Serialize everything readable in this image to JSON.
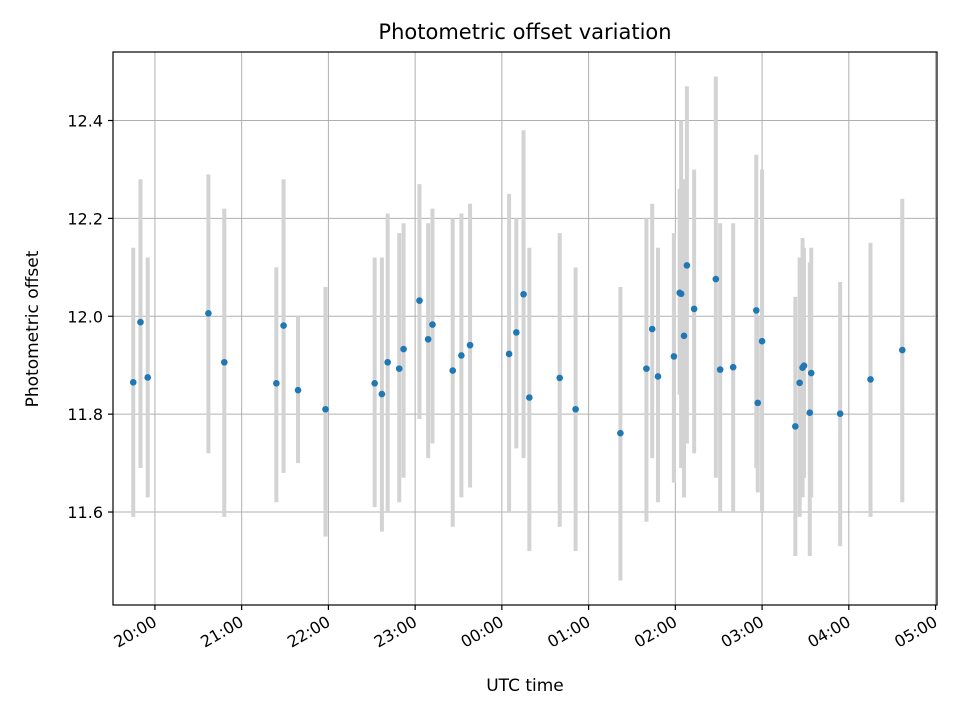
{
  "chart_data": {
    "type": "scatter",
    "title": "Photometric offset variation",
    "xlabel": "UTC time",
    "ylabel": "Photometric offset",
    "grid": true,
    "xlim": [
      "19:31",
      "05:01"
    ],
    "ylim": [
      11.41,
      12.54
    ],
    "x_ticks": [
      "20:00",
      "21:00",
      "22:00",
      "23:00",
      "00:00",
      "01:00",
      "02:00",
      "03:00",
      "04:00",
      "05:00"
    ],
    "y_ticks": [
      11.6,
      11.8,
      12.0,
      12.2,
      12.4
    ],
    "y_tick_labels": [
      "11.6",
      "11.8",
      "12.0",
      "12.2",
      "12.4"
    ],
    "colors": {
      "point": "#1f77b4",
      "errorbar": "#d3d3d3",
      "grid": "#b0b0b0"
    },
    "series": [
      {
        "x": [
          "19:45",
          "19:50",
          "19:55",
          "20:37",
          "20:48",
          "21:24",
          "21:29",
          "21:39",
          "21:58",
          "22:32",
          "22:37",
          "22:41",
          "22:49",
          "22:52",
          "23:03",
          "23:09",
          "23:12",
          "23:26",
          "23:32",
          "23:38",
          "00:05",
          "00:10",
          "00:15",
          "00:19",
          "00:40",
          "00:51",
          "01:22",
          "01:40",
          "01:44",
          "01:48",
          "01:59",
          "02:03",
          "02:04",
          "02:06",
          "02:08",
          "02:13",
          "02:28",
          "02:31",
          "02:40",
          "02:56",
          "02:57",
          "03:00",
          "03:23",
          "03:26",
          "03:28",
          "03:29",
          "03:33",
          "03:34",
          "03:54",
          "04:15",
          "04:37"
        ],
        "y": [
          11.865,
          11.988,
          11.875,
          12.006,
          11.906,
          11.863,
          11.981,
          11.849,
          11.81,
          11.863,
          11.841,
          11.906,
          11.893,
          11.933,
          12.032,
          11.953,
          11.983,
          11.889,
          11.92,
          11.941,
          11.923,
          11.967,
          12.045,
          11.834,
          11.874,
          11.81,
          11.761,
          11.893,
          11.974,
          11.877,
          11.918,
          12.048,
          12.046,
          11.96,
          12.104,
          12.015,
          12.076,
          11.891,
          11.896,
          12.012,
          11.823,
          11.949,
          11.775,
          11.864,
          11.895,
          11.899,
          11.803,
          11.884,
          11.801,
          11.871,
          11.931
        ],
        "yerr_low": [
          11.59,
          11.69,
          11.63,
          11.72,
          11.59,
          11.62,
          11.68,
          11.7,
          11.55,
          11.61,
          11.56,
          11.6,
          11.62,
          11.67,
          11.79,
          11.71,
          11.74,
          11.57,
          11.63,
          11.65,
          11.6,
          11.73,
          11.71,
          11.52,
          11.57,
          11.52,
          11.46,
          11.58,
          11.71,
          11.62,
          11.66,
          11.84,
          11.69,
          11.63,
          11.74,
          11.72,
          11.67,
          11.6,
          11.6,
          11.69,
          11.64,
          11.6,
          11.51,
          11.59,
          11.63,
          11.67,
          11.51,
          11.63,
          11.53,
          11.59,
          11.62
        ],
        "yerr_high": [
          12.14,
          12.28,
          12.12,
          12.29,
          12.22,
          12.1,
          12.28,
          12.0,
          12.06,
          12.12,
          12.12,
          12.21,
          12.17,
          12.19,
          12.27,
          12.19,
          12.22,
          12.2,
          12.21,
          12.23,
          12.25,
          12.2,
          12.38,
          12.14,
          12.17,
          12.1,
          12.06,
          12.2,
          12.23,
          12.14,
          12.17,
          12.26,
          12.4,
          12.28,
          12.47,
          12.3,
          12.49,
          12.19,
          12.19,
          12.33,
          12.0,
          12.3,
          12.04,
          12.12,
          12.16,
          12.14,
          12.11,
          12.14,
          12.07,
          12.15,
          12.24
        ]
      }
    ]
  }
}
